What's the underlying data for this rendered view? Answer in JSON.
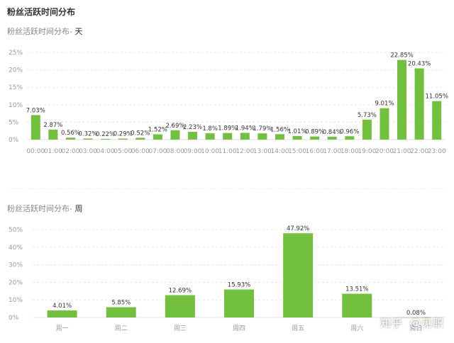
{
  "page": {
    "title": "粉丝活跃时间分布"
  },
  "sections": {
    "day_title_prefix": "粉丝活跃时间分布-",
    "day_title_suffix": "天",
    "week_title_prefix": "粉丝活跃时间分布-",
    "week_title_suffix": "周"
  },
  "watermark": {
    "brand": "知乎",
    "author": "@见职"
  },
  "colors": {
    "bar": "#72c13c",
    "grid": "#e8e8e8",
    "tick": "#999999"
  },
  "chart_data": [
    {
      "type": "bar",
      "title": "粉丝活跃时间分布- 天",
      "categories": [
        "00:00",
        "01:00",
        "02:00",
        "03:00",
        "04:00",
        "05:00",
        "06:00",
        "07:00",
        "08:00",
        "09:00",
        "10:00",
        "11:00",
        "12:00",
        "13:00",
        "14:00",
        "15:00",
        "16:00",
        "17:00",
        "18:00",
        "19:00",
        "20:00",
        "21:00",
        "22:00",
        "23:00"
      ],
      "values": [
        7.03,
        2.87,
        0.56,
        0.32,
        0.22,
        0.29,
        0.52,
        1.52,
        2.69,
        2.23,
        1.8,
        1.89,
        1.94,
        1.79,
        1.56,
        1.01,
        0.89,
        0.84,
        0.96,
        5.73,
        9.01,
        22.85,
        20.43,
        11.05
      ],
      "data_labels": [
        "7.03%",
        "2.87%",
        "0.56%",
        "0.32%",
        "0.22%",
        "0.29%",
        "0.52%",
        "1.52%",
        "2.69%",
        "2.23%",
        "1.8%",
        "1.89%",
        "1.94%",
        "1.79%",
        "1.56%",
        "1.01%",
        "0.89%",
        "0.84%",
        "0.96%",
        "5.73%",
        "9.01%",
        "22.85%",
        "20.43%",
        "11.05%"
      ],
      "yticks": [
        "0%",
        "5%",
        "10%",
        "15%",
        "20%",
        "25%"
      ],
      "ylim": [
        0,
        25
      ],
      "grid": true,
      "legend": "none"
    },
    {
      "type": "bar",
      "title": "粉丝活跃时间分布- 周",
      "categories": [
        "周一",
        "周二",
        "周三",
        "周四",
        "周五",
        "周六",
        "周日"
      ],
      "values": [
        4.01,
        5.85,
        12.69,
        15.93,
        47.92,
        13.51,
        0.08
      ],
      "data_labels": [
        "4.01%",
        "5.85%",
        "12.69%",
        "15.93%",
        "47.92%",
        "13.51%",
        "0.08%"
      ],
      "yticks": [
        "0%",
        "10%",
        "20%",
        "30%",
        "40%",
        "50%"
      ],
      "ylim": [
        0,
        50
      ],
      "grid": true,
      "legend": "none"
    }
  ]
}
